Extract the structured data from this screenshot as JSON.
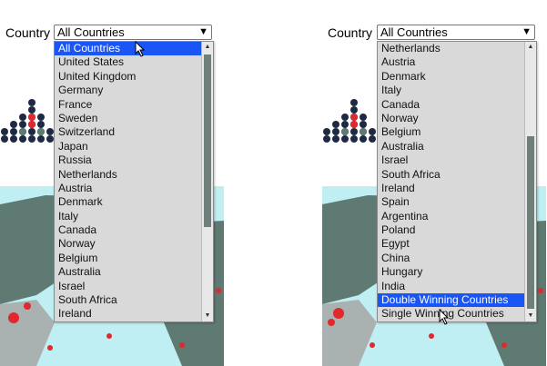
{
  "left": {
    "label": "Country",
    "selected_value": "All Countries",
    "options": [
      "All Countries",
      "United States",
      "United Kingdom",
      "Germany",
      "France",
      "Sweden",
      "Switzerland",
      "Japan",
      "Russia",
      "Netherlands",
      "Austria",
      "Denmark",
      "Italy",
      "Canada",
      "Norway",
      "Belgium",
      "Australia",
      "Israel",
      "South Africa",
      "Ireland"
    ],
    "highlighted_index": 0
  },
  "right": {
    "label": "Country",
    "selected_value": "All Countries",
    "options": [
      "Netherlands",
      "Austria",
      "Denmark",
      "Italy",
      "Canada",
      "Norway",
      "Belgium",
      "Australia",
      "Israel",
      "South Africa",
      "Ireland",
      "Spain",
      "Argentina",
      "Poland",
      "Egypt",
      "China",
      "Hungary",
      "India",
      "Double Winning Countries",
      "Single Winning Countries"
    ],
    "highlighted_index": 18
  },
  "colors": {
    "highlight": "#1a55f5",
    "map_land": "#5f7a72",
    "map_water": "#bfeff3",
    "marker": "#e0282e"
  }
}
